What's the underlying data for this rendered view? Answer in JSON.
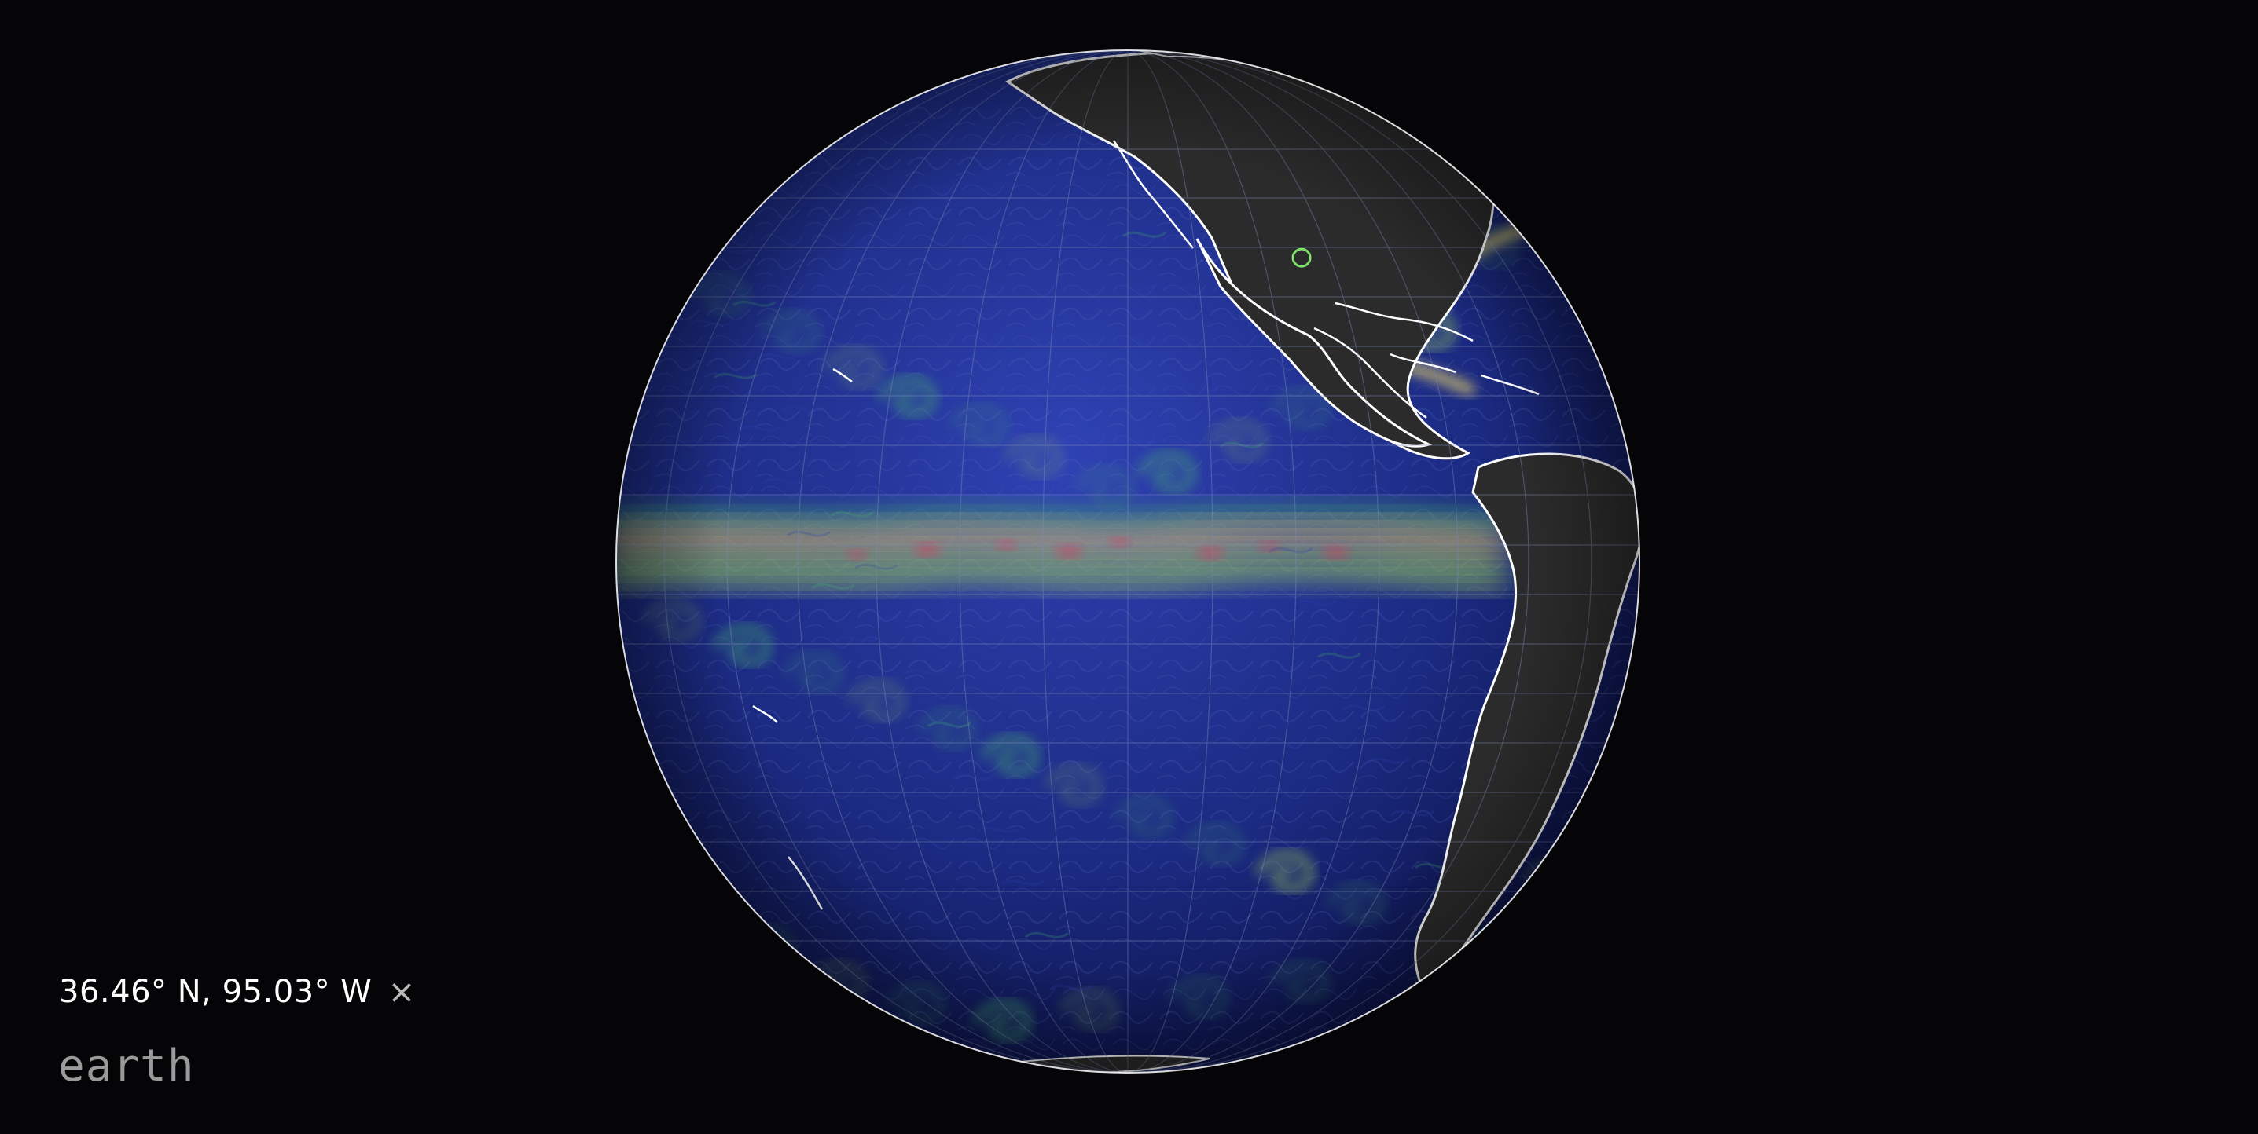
{
  "map": {
    "projection": "orthographic",
    "center": {
      "lon": -120,
      "lat": 0
    },
    "layer": "ocean currents",
    "land_color": "#2b2b2b",
    "ocean_color": "#1d2d86",
    "graticule_color": "#7f8bb7",
    "coast_color": "#ffffff",
    "marker": {
      "lat": 36.46,
      "lon": -95.03,
      "color": "#7ee26b",
      "icon": "location-ring-icon"
    },
    "heat_palette": [
      "#2d3ea6",
      "#48b06d",
      "#a2d35a",
      "#e3cf69",
      "#d76e5e",
      "#d33d61"
    ]
  },
  "location": {
    "text": "36.46° N, 95.03° W",
    "close_label": "×",
    "close_icon": "close-icon"
  },
  "app": {
    "title": "earth"
  }
}
